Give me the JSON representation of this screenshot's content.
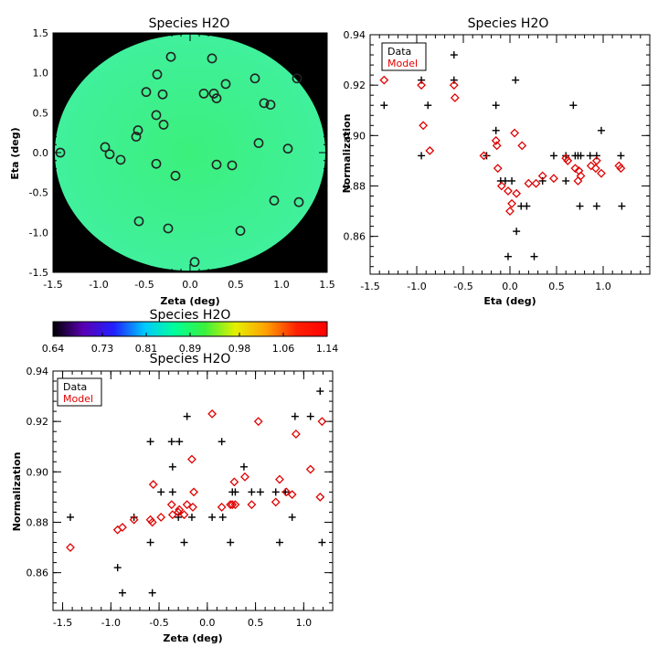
{
  "chart_data": [
    {
      "type": "map",
      "title": "Species H2O",
      "xlabel": "Zeta (deg)",
      "ylabel": "Eta (deg)",
      "xlim": [
        -1.5,
        1.5
      ],
      "ylim": [
        -1.5,
        1.5
      ],
      "xticks": [
        "-1.5",
        "-1.0",
        "-0.5",
        "0.0",
        "0.5",
        "1.0",
        "1.5"
      ],
      "yticks": [
        "-1.5",
        "-1.0",
        "-0.5",
        "0.0",
        "0.5",
        "1.0",
        "1.5"
      ],
      "background": "#000000",
      "disk_radius_deg": 1.48,
      "disk_color_center": "#3cf07c",
      "disk_color_edge": "#40f09c",
      "marker_edge_color": "#222222",
      "sources": [
        {
          "x": -1.42,
          "y": 0.0
        },
        {
          "x": -0.93,
          "y": 0.07
        },
        {
          "x": -0.88,
          "y": -0.02
        },
        {
          "x": -0.76,
          "y": -0.09
        },
        {
          "x": -0.57,
          "y": 0.28
        },
        {
          "x": -0.59,
          "y": 0.2
        },
        {
          "x": -0.56,
          "y": -0.86
        },
        {
          "x": -0.48,
          "y": 0.76
        },
        {
          "x": -0.36,
          "y": 0.98
        },
        {
          "x": -0.37,
          "y": 0.47
        },
        {
          "x": -0.3,
          "y": 0.73
        },
        {
          "x": -0.29,
          "y": 0.35
        },
        {
          "x": -0.37,
          "y": -0.14
        },
        {
          "x": -0.24,
          "y": -0.95
        },
        {
          "x": -0.21,
          "y": 1.2
        },
        {
          "x": -0.16,
          "y": -0.29
        },
        {
          "x": 0.05,
          "y": -1.37
        },
        {
          "x": 0.15,
          "y": 0.74
        },
        {
          "x": 0.24,
          "y": 1.18
        },
        {
          "x": 0.26,
          "y": 0.74
        },
        {
          "x": 0.29,
          "y": 0.68
        },
        {
          "x": 0.29,
          "y": -0.15
        },
        {
          "x": 0.39,
          "y": 0.86
        },
        {
          "x": 0.46,
          "y": -0.16
        },
        {
          "x": 0.55,
          "y": -0.98
        },
        {
          "x": 0.71,
          "y": 0.93
        },
        {
          "x": 0.75,
          "y": 0.12
        },
        {
          "x": 0.81,
          "y": 0.62
        },
        {
          "x": 0.88,
          "y": 0.6
        },
        {
          "x": 0.92,
          "y": -0.6
        },
        {
          "x": 1.07,
          "y": 0.05
        },
        {
          "x": 1.17,
          "y": 0.93
        },
        {
          "x": 1.19,
          "y": -0.62
        }
      ]
    },
    {
      "type": "colorbar",
      "title": "Species H2O",
      "ticks": [
        "0.64",
        "0.73",
        "0.81",
        "0.89",
        "0.98",
        "1.06",
        "1.14"
      ],
      "range": [
        0.64,
        1.14
      ],
      "colors": [
        "#000000",
        "#5a00b4",
        "#2020ff",
        "#00c8ff",
        "#00ff9a",
        "#3cf03c",
        "#e6f000",
        "#ffa000",
        "#ff2000",
        "#ff0000"
      ]
    },
    {
      "type": "scatter",
      "title": "Species H2O",
      "xlabel": "Eta (deg)",
      "ylabel": "Normalization",
      "xlim": [
        -1.5,
        1.5
      ],
      "ylim": [
        0.845,
        0.94
      ],
      "xticks": [
        "-1.5",
        "-1.0",
        "-0.5",
        "0.0",
        "0.5",
        "1.0"
      ],
      "yticks": [
        "0.86",
        "0.88",
        "0.90",
        "0.92",
        "0.94"
      ],
      "legend": {
        "position": "top-left",
        "entries": [
          "Data",
          "Model"
        ],
        "colors": [
          "#000000",
          "#e00000"
        ]
      },
      "series": [
        {
          "name": "Data",
          "marker": "plus",
          "color": "#000000",
          "points": [
            [
              -1.35,
              0.912
            ],
            [
              -0.95,
              0.922
            ],
            [
              -0.95,
              0.892
            ],
            [
              -0.88,
              0.912
            ],
            [
              -0.6,
              0.932
            ],
            [
              -0.6,
              0.922
            ],
            [
              -0.25,
              0.892
            ],
            [
              -0.15,
              0.912
            ],
            [
              -0.15,
              0.902
            ],
            [
              -0.1,
              0.882
            ],
            [
              -0.05,
              0.882
            ],
            [
              -0.02,
              0.852
            ],
            [
              0.02,
              0.882
            ],
            [
              0.06,
              0.922
            ],
            [
              0.07,
              0.862
            ],
            [
              0.12,
              0.872
            ],
            [
              0.18,
              0.872
            ],
            [
              0.26,
              0.852
            ],
            [
              0.35,
              0.882
            ],
            [
              0.47,
              0.892
            ],
            [
              0.6,
              0.892
            ],
            [
              0.6,
              0.882
            ],
            [
              0.68,
              0.912
            ],
            [
              0.7,
              0.892
            ],
            [
              0.73,
              0.892
            ],
            [
              0.75,
              0.872
            ],
            [
              0.76,
              0.892
            ],
            [
              0.86,
              0.892
            ],
            [
              0.93,
              0.872
            ],
            [
              0.93,
              0.892
            ],
            [
              0.98,
              0.902
            ],
            [
              1.19,
              0.892
            ],
            [
              1.2,
              0.872
            ]
          ]
        },
        {
          "name": "Model",
          "marker": "diamond",
          "color": "#e00000",
          "points": [
            [
              -1.35,
              0.922
            ],
            [
              -0.95,
              0.92
            ],
            [
              -0.93,
              0.904
            ],
            [
              -0.86,
              0.894
            ],
            [
              -0.6,
              0.92
            ],
            [
              -0.59,
              0.915
            ],
            [
              -0.28,
              0.892
            ],
            [
              -0.15,
              0.898
            ],
            [
              -0.14,
              0.896
            ],
            [
              -0.13,
              0.887
            ],
            [
              -0.09,
              0.88
            ],
            [
              -0.02,
              0.878
            ],
            [
              0.0,
              0.87
            ],
            [
              0.02,
              0.873
            ],
            [
              0.05,
              0.901
            ],
            [
              0.07,
              0.877
            ],
            [
              0.13,
              0.896
            ],
            [
              0.2,
              0.881
            ],
            [
              0.28,
              0.881
            ],
            [
              0.35,
              0.884
            ],
            [
              0.47,
              0.883
            ],
            [
              0.6,
              0.891
            ],
            [
              0.62,
              0.89
            ],
            [
              0.7,
              0.887
            ],
            [
              0.73,
              0.882
            ],
            [
              0.74,
              0.886
            ],
            [
              0.76,
              0.884
            ],
            [
              0.87,
              0.888
            ],
            [
              0.92,
              0.887
            ],
            [
              0.93,
              0.89
            ],
            [
              0.98,
              0.885
            ],
            [
              1.17,
              0.888
            ],
            [
              1.19,
              0.887
            ]
          ]
        }
      ]
    },
    {
      "type": "scatter",
      "title": "Species H2O",
      "xlabel": "Zeta (deg)",
      "ylabel": "Normalization",
      "xlim": [
        -1.6,
        1.3
      ],
      "ylim": [
        0.845,
        0.94
      ],
      "xticks": [
        "-1.5",
        "-1.0",
        "-0.5",
        "0.0",
        "0.5",
        "1.0"
      ],
      "yticks": [
        "0.86",
        "0.88",
        "0.90",
        "0.92",
        "0.94"
      ],
      "legend": {
        "position": "top-left",
        "entries": [
          "Data",
          "Model"
        ],
        "colors": [
          "#000000",
          "#e00000"
        ]
      },
      "series": [
        {
          "name": "Data",
          "marker": "plus",
          "color": "#000000",
          "points": [
            [
              -1.42,
              0.882
            ],
            [
              -0.93,
              0.862
            ],
            [
              -0.88,
              0.852
            ],
            [
              -0.76,
              0.882
            ],
            [
              -0.59,
              0.912
            ],
            [
              -0.59,
              0.872
            ],
            [
              -0.57,
              0.852
            ],
            [
              -0.48,
              0.892
            ],
            [
              -0.37,
              0.912
            ],
            [
              -0.36,
              0.902
            ],
            [
              -0.36,
              0.892
            ],
            [
              -0.3,
              0.882
            ],
            [
              -0.29,
              0.912
            ],
            [
              -0.24,
              0.872
            ],
            [
              -0.21,
              0.922
            ],
            [
              -0.16,
              0.882
            ],
            [
              0.05,
              0.882
            ],
            [
              0.15,
              0.912
            ],
            [
              0.16,
              0.882
            ],
            [
              0.24,
              0.872
            ],
            [
              0.26,
              0.892
            ],
            [
              0.29,
              0.892
            ],
            [
              0.38,
              0.902
            ],
            [
              0.46,
              0.892
            ],
            [
              0.55,
              0.892
            ],
            [
              0.71,
              0.892
            ],
            [
              0.75,
              0.872
            ],
            [
              0.81,
              0.892
            ],
            [
              0.88,
              0.882
            ],
            [
              0.91,
              0.922
            ],
            [
              1.07,
              0.922
            ],
            [
              1.17,
              0.932
            ],
            [
              1.19,
              0.872
            ]
          ]
        },
        {
          "name": "Model",
          "marker": "diamond",
          "color": "#e00000",
          "points": [
            [
              -1.42,
              0.87
            ],
            [
              -0.93,
              0.877
            ],
            [
              -0.88,
              0.878
            ],
            [
              -0.76,
              0.881
            ],
            [
              -0.59,
              0.881
            ],
            [
              -0.57,
              0.88
            ],
            [
              -0.56,
              0.895
            ],
            [
              -0.48,
              0.882
            ],
            [
              -0.37,
              0.887
            ],
            [
              -0.36,
              0.883
            ],
            [
              -0.3,
              0.884
            ],
            [
              -0.29,
              0.885
            ],
            [
              -0.24,
              0.883
            ],
            [
              -0.21,
              0.887
            ],
            [
              -0.16,
              0.905
            ],
            [
              -0.15,
              0.886
            ],
            [
              -0.14,
              0.892
            ],
            [
              0.05,
              0.923
            ],
            [
              0.15,
              0.886
            ],
            [
              0.24,
              0.887
            ],
            [
              0.26,
              0.887
            ],
            [
              0.28,
              0.896
            ],
            [
              0.29,
              0.887
            ],
            [
              0.39,
              0.898
            ],
            [
              0.46,
              0.887
            ],
            [
              0.53,
              0.92
            ],
            [
              0.71,
              0.888
            ],
            [
              0.75,
              0.897
            ],
            [
              0.82,
              0.892
            ],
            [
              0.88,
              0.891
            ],
            [
              0.92,
              0.915
            ],
            [
              1.07,
              0.901
            ],
            [
              1.17,
              0.89
            ],
            [
              1.19,
              0.92
            ]
          ]
        }
      ]
    }
  ]
}
